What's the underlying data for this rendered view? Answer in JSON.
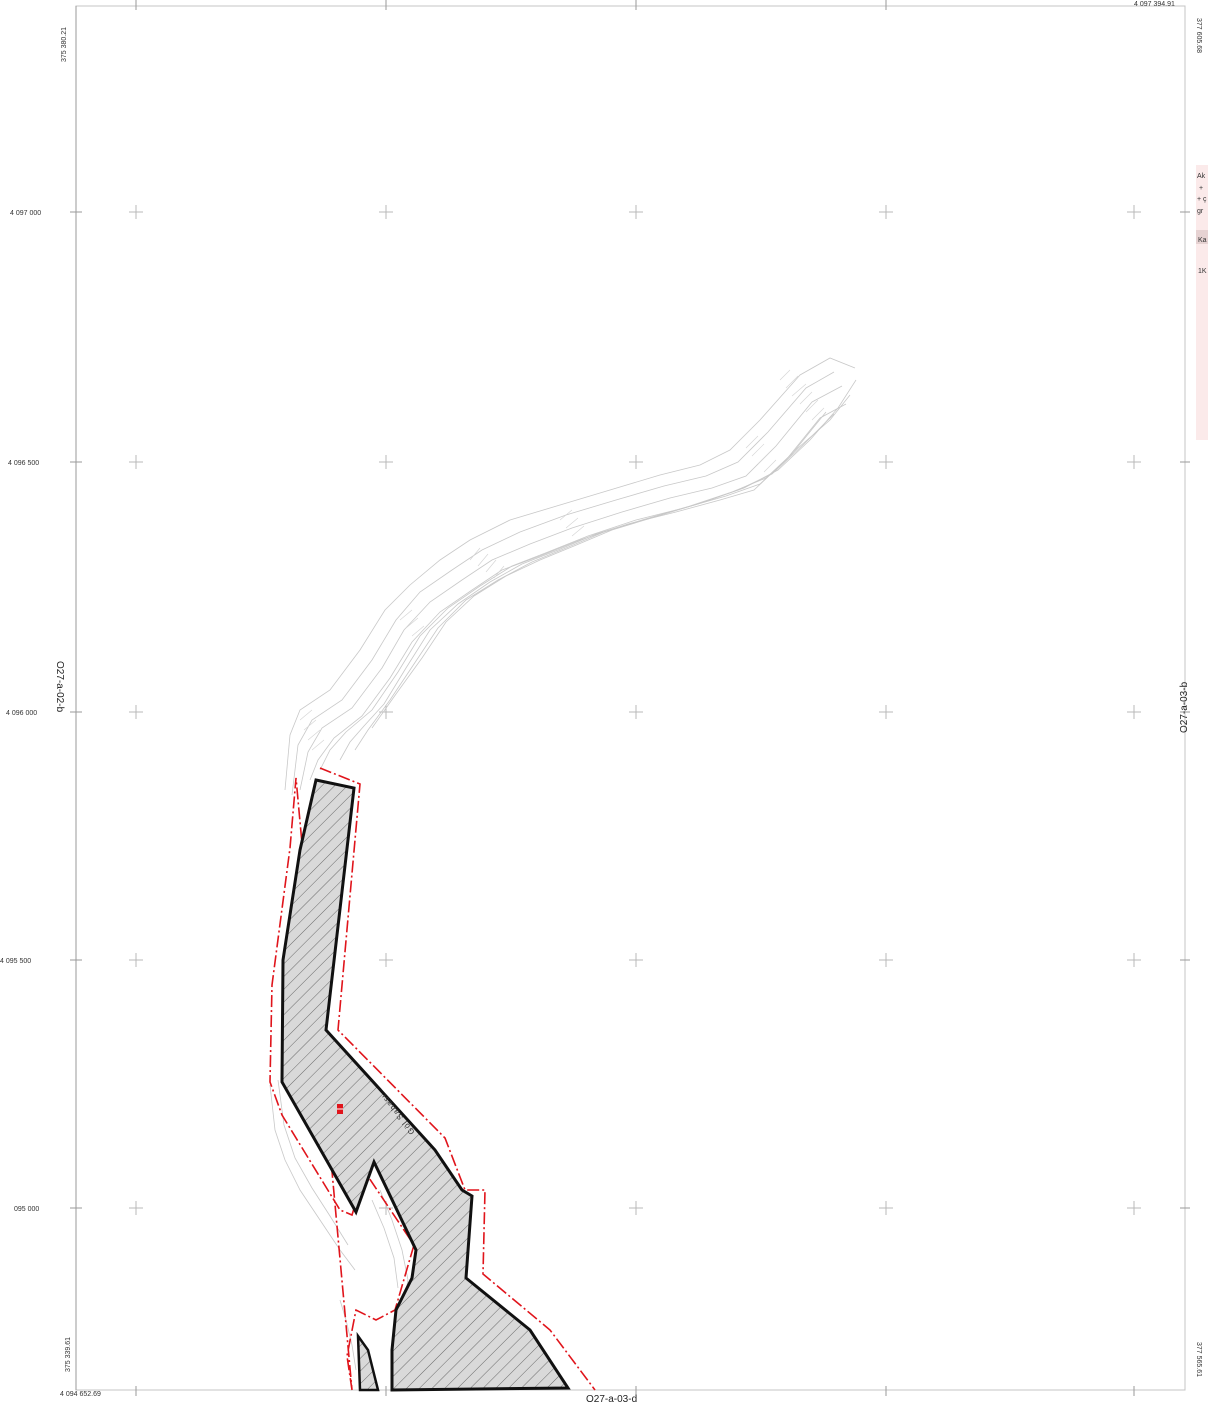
{
  "map": {
    "corner_coords": {
      "top_left_e": "375 380.21",
      "top_right_n": "4 097 394.91",
      "top_right_e": "377 605.68",
      "bottom_left_n": "4 094 652.69",
      "bottom_left_e": "375 339.61",
      "bottom_right_e": "377 565.61"
    },
    "northing_labels": [
      "4 097 000",
      "4 096 500",
      "4 096 000",
      "4 095 500",
      "095 000"
    ],
    "adjacent_sheets": {
      "west": "O27-a-02-b",
      "east": "O27-a-03-b",
      "south": "O27-a-03-d"
    },
    "feature_label": "Göl Sahası",
    "legend_fragments": [
      "Ak",
      "+",
      "+ ç",
      "gr",
      "Ka",
      "1K"
    ],
    "colors": {
      "parcel_outline": "#111111",
      "buffer_line": "#e0141b",
      "topo_lines": "#c8c8c8",
      "legend_bg": "#fbeaea"
    }
  }
}
